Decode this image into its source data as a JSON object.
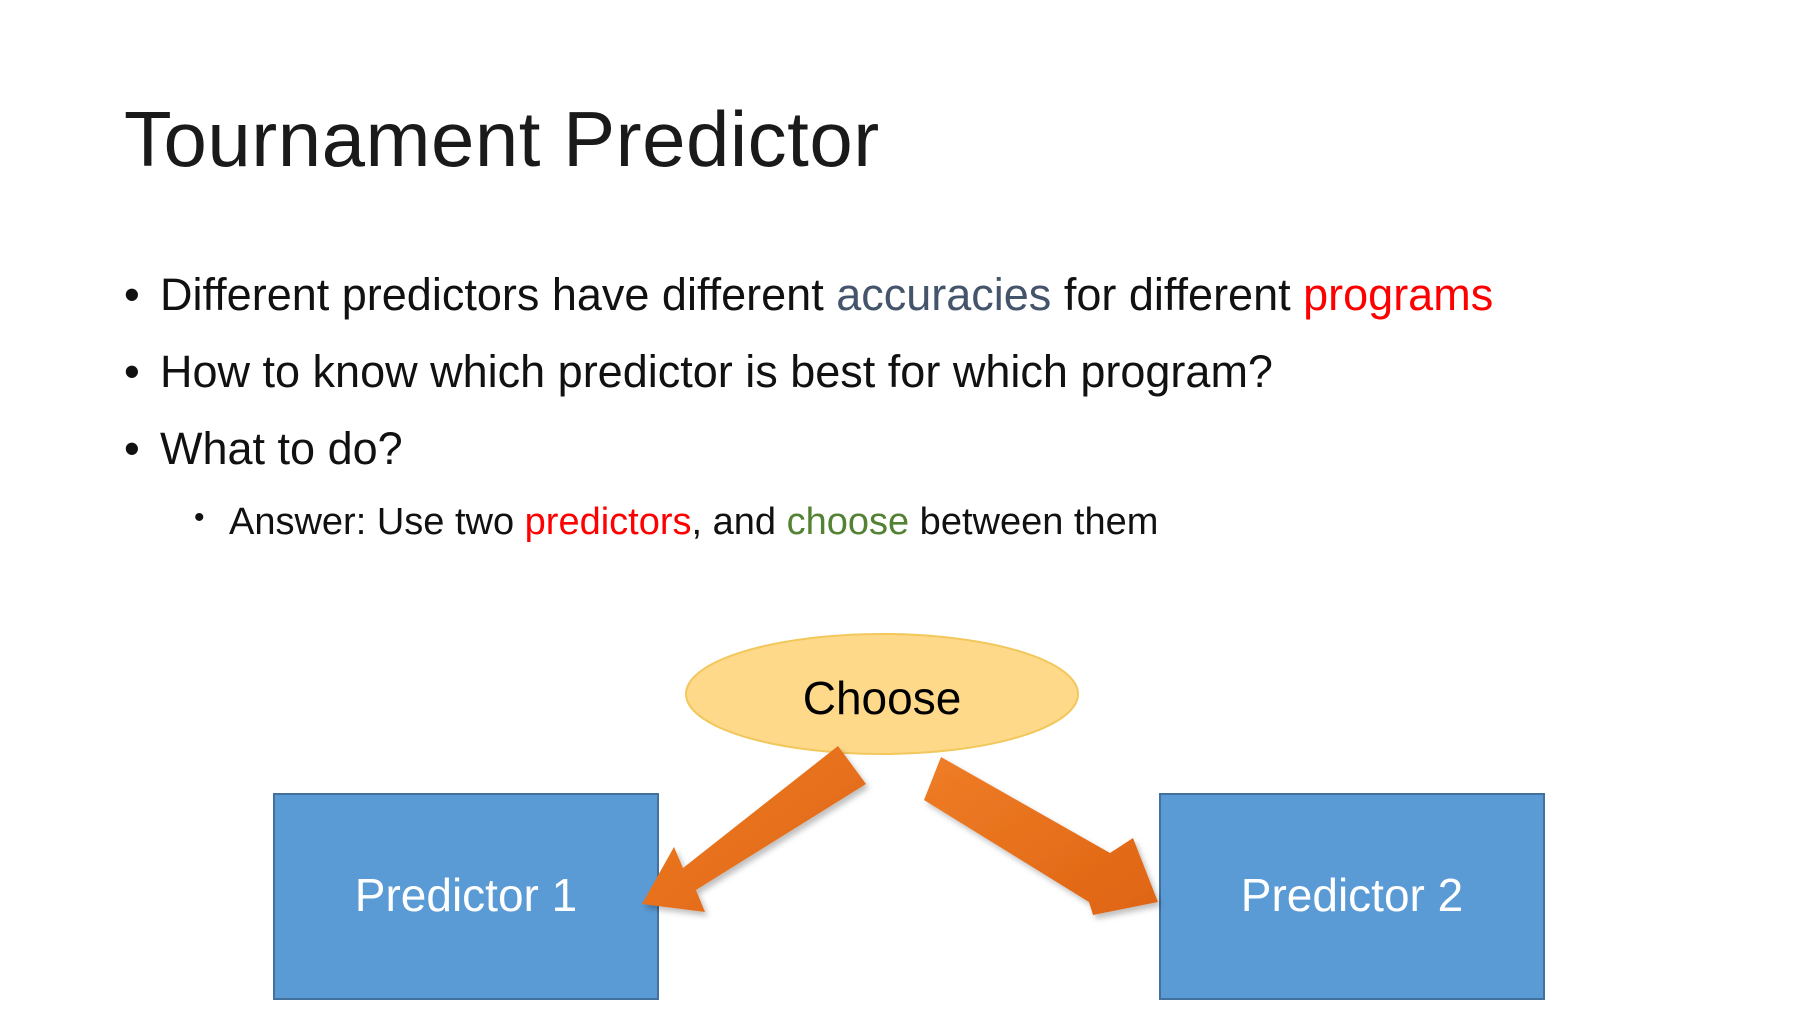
{
  "slide": {
    "title": "Tournament Predictor",
    "bullets": [
      {
        "bullet_char": "•",
        "segments": [
          {
            "text": "Different predictors have different ",
            "style": "plain"
          },
          {
            "text": "accuracies",
            "style": "blue"
          },
          {
            "text": " for different ",
            "style": "plain"
          },
          {
            "text": "programs",
            "style": "red"
          }
        ]
      },
      {
        "bullet_char": "•",
        "segments": [
          {
            "text": "How to know which predictor is best for which program?",
            "style": "plain"
          }
        ]
      },
      {
        "bullet_char": "•",
        "segments": [
          {
            "text": "What to do?",
            "style": "plain"
          }
        ]
      }
    ],
    "sub_bullets": [
      {
        "bullet_char": "•",
        "segments": [
          {
            "text": "Answer: Use two ",
            "style": "plain"
          },
          {
            "text": "predictors",
            "style": "red"
          },
          {
            "text": ", and ",
            "style": "plain"
          },
          {
            "text": "choose",
            "style": "green"
          },
          {
            "text": " between them",
            "style": "plain"
          }
        ]
      }
    ]
  },
  "diagram": {
    "choose_label": "Choose",
    "predictor1_label": "Predictor 1",
    "predictor2_label": "Predictor 2"
  },
  "colors": {
    "accent_blue_text": "#44546a",
    "accent_red_text": "#ff0000",
    "accent_green_text": "#548235",
    "choose_fill": "#ffd98a",
    "choose_stroke": "#f2c75c",
    "predictor_fill": "#5b9bd5",
    "predictor_stroke": "#41719c",
    "arrow_fill": "#e8731e"
  }
}
